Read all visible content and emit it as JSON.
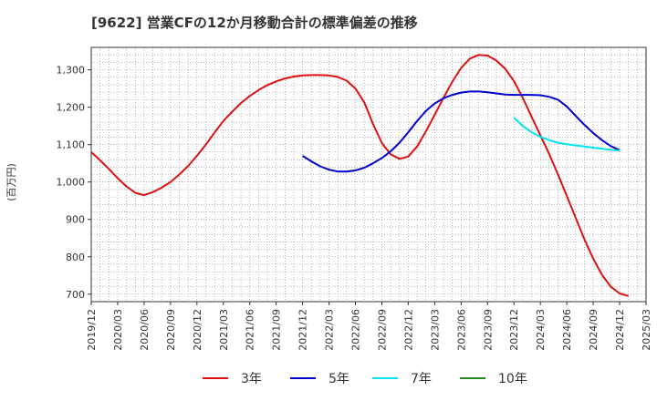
{
  "chart_data": {
    "type": "line",
    "title": "[9622]  営業CFの12か月移動合計の標準偏差の推移",
    "ylabel": "(百万円)",
    "xlabel": "",
    "ylim": [
      680,
      1360
    ],
    "yticks": [
      700,
      800,
      900,
      1000,
      1100,
      1200,
      1300
    ],
    "ytick_labels": [
      "700",
      "800",
      "900",
      "1,000",
      "1,100",
      "1,200",
      "1,300"
    ],
    "xticks": [
      "2019/12",
      "2020/03",
      "2020/06",
      "2020/09",
      "2020/12",
      "2021/03",
      "2021/06",
      "2021/09",
      "2021/12",
      "2022/03",
      "2022/06",
      "2022/09",
      "2022/12",
      "2023/03",
      "2023/06",
      "2023/09",
      "2023/12",
      "2024/03",
      "2024/06",
      "2024/09",
      "2024/12",
      "2025/03"
    ],
    "grid": true,
    "legend_position": "bottom",
    "series": [
      {
        "name": "3年",
        "color": "#dd1111",
        "points": [
          [
            "2019/12",
            1080
          ],
          [
            "2020/01",
            1058
          ],
          [
            "2020/02",
            1035
          ],
          [
            "2020/03",
            1010
          ],
          [
            "2020/04",
            988
          ],
          [
            "2020/05",
            971
          ],
          [
            "2020/06",
            965
          ],
          [
            "2020/07",
            973
          ],
          [
            "2020/08",
            985
          ],
          [
            "2020/09",
            1000
          ],
          [
            "2020/10",
            1020
          ],
          [
            "2020/11",
            1043
          ],
          [
            "2020/12",
            1070
          ],
          [
            "2021/01",
            1100
          ],
          [
            "2021/02",
            1132
          ],
          [
            "2021/03",
            1163
          ],
          [
            "2021/04",
            1188
          ],
          [
            "2021/05",
            1211
          ],
          [
            "2021/06",
            1230
          ],
          [
            "2021/07",
            1246
          ],
          [
            "2021/08",
            1259
          ],
          [
            "2021/09",
            1269
          ],
          [
            "2021/10",
            1277
          ],
          [
            "2021/11",
            1282
          ],
          [
            "2021/12",
            1285
          ],
          [
            "2022/01",
            1286
          ],
          [
            "2022/02",
            1286
          ],
          [
            "2022/03",
            1285
          ],
          [
            "2022/04",
            1281
          ],
          [
            "2022/05",
            1271
          ],
          [
            "2022/06",
            1250
          ],
          [
            "2022/07",
            1213
          ],
          [
            "2022/08",
            1155
          ],
          [
            "2022/09",
            1104
          ],
          [
            "2022/10",
            1074
          ],
          [
            "2022/11",
            1062
          ],
          [
            "2022/12",
            1068
          ],
          [
            "2023/01",
            1095
          ],
          [
            "2023/02",
            1135
          ],
          [
            "2023/03",
            1180
          ],
          [
            "2023/04",
            1225
          ],
          [
            "2023/05",
            1268
          ],
          [
            "2023/06",
            1305
          ],
          [
            "2023/07",
            1330
          ],
          [
            "2023/08",
            1340
          ],
          [
            "2023/09",
            1338
          ],
          [
            "2023/10",
            1325
          ],
          [
            "2023/11",
            1303
          ],
          [
            "2023/12",
            1270
          ],
          [
            "2024/01",
            1225
          ],
          [
            "2024/02",
            1175
          ],
          [
            "2024/03",
            1125
          ],
          [
            "2024/04",
            1075
          ],
          [
            "2024/05",
            1020
          ],
          [
            "2024/06",
            963
          ],
          [
            "2024/07",
            905
          ],
          [
            "2024/08",
            847
          ],
          [
            "2024/09",
            795
          ],
          [
            "2024/10",
            752
          ],
          [
            "2024/11",
            720
          ],
          [
            "2024/12",
            702
          ],
          [
            "2025/01",
            695
          ]
        ]
      },
      {
        "name": "5年",
        "color": "#0000cc",
        "points": [
          [
            "2021/12",
            1070
          ],
          [
            "2022/01",
            1055
          ],
          [
            "2022/02",
            1042
          ],
          [
            "2022/03",
            1033
          ],
          [
            "2022/04",
            1028
          ],
          [
            "2022/05",
            1028
          ],
          [
            "2022/06",
            1031
          ],
          [
            "2022/07",
            1038
          ],
          [
            "2022/08",
            1050
          ],
          [
            "2022/09",
            1064
          ],
          [
            "2022/10",
            1082
          ],
          [
            "2022/11",
            1105
          ],
          [
            "2022/12",
            1133
          ],
          [
            "2023/01",
            1163
          ],
          [
            "2023/02",
            1190
          ],
          [
            "2023/03",
            1210
          ],
          [
            "2023/04",
            1224
          ],
          [
            "2023/05",
            1233
          ],
          [
            "2023/06",
            1239
          ],
          [
            "2023/07",
            1242
          ],
          [
            "2023/08",
            1242
          ],
          [
            "2023/09",
            1240
          ],
          [
            "2023/10",
            1237
          ],
          [
            "2023/11",
            1234
          ],
          [
            "2023/12",
            1233
          ],
          [
            "2024/01",
            1233
          ],
          [
            "2024/02",
            1233
          ],
          [
            "2024/03",
            1232
          ],
          [
            "2024/04",
            1228
          ],
          [
            "2024/05",
            1220
          ],
          [
            "2024/06",
            1202
          ],
          [
            "2024/07",
            1177
          ],
          [
            "2024/08",
            1153
          ],
          [
            "2024/09",
            1131
          ],
          [
            "2024/10",
            1112
          ],
          [
            "2024/11",
            1096
          ],
          [
            "2024/12",
            1085
          ]
        ]
      },
      {
        "name": "7年",
        "color": "#00e5ee",
        "points": [
          [
            "2023/12",
            1172
          ],
          [
            "2024/01",
            1150
          ],
          [
            "2024/02",
            1133
          ],
          [
            "2024/03",
            1121
          ],
          [
            "2024/04",
            1112
          ],
          [
            "2024/05",
            1105
          ],
          [
            "2024/06",
            1101
          ],
          [
            "2024/07",
            1098
          ],
          [
            "2024/08",
            1095
          ],
          [
            "2024/09",
            1092
          ],
          [
            "2024/10",
            1089
          ],
          [
            "2024/11",
            1086
          ],
          [
            "2024/12",
            1084
          ]
        ]
      },
      {
        "name": "10年",
        "color": "#228b22",
        "points": []
      }
    ]
  }
}
